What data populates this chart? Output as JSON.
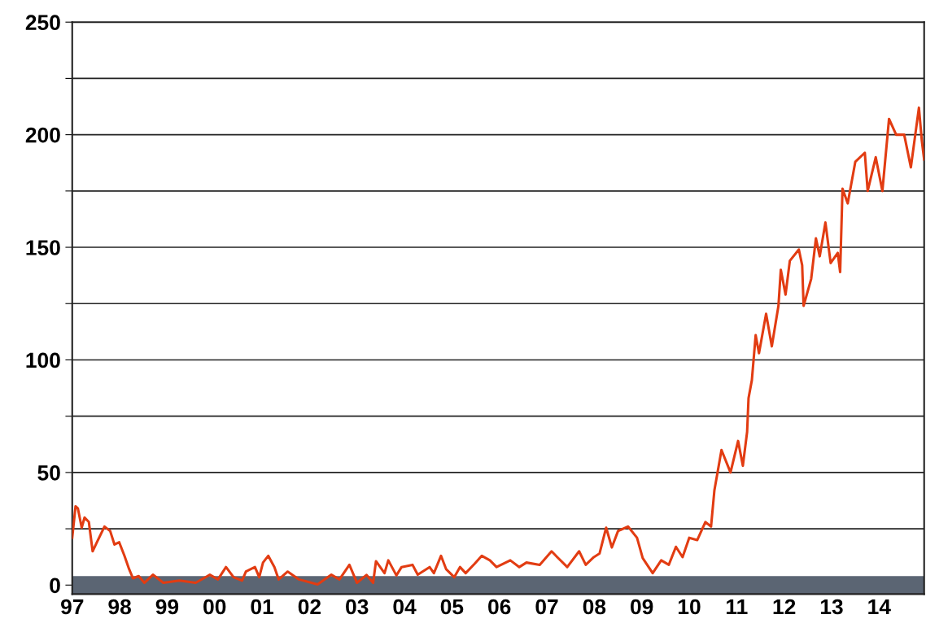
{
  "chart_data": {
    "type": "line",
    "x": [
      1997.0,
      1997.07,
      1997.12,
      1997.2,
      1997.26,
      1997.35,
      1997.43,
      1997.52,
      1997.68,
      1997.8,
      1997.89,
      1997.99,
      1998.1,
      1998.2,
      1998.28,
      1998.4,
      1998.52,
      1998.7,
      1998.92,
      1999.26,
      1999.6,
      1999.9,
      2000.07,
      2000.24,
      2000.4,
      2000.58,
      2000.66,
      2000.85,
      2000.94,
      2001.02,
      2001.13,
      2001.26,
      2001.35,
      2001.54,
      2001.78,
      2002.17,
      2002.46,
      2002.63,
      2002.84,
      2003.0,
      2003.2,
      2003.34,
      2003.4,
      2003.58,
      2003.66,
      2003.83,
      2003.94,
      2004.17,
      2004.28,
      2004.53,
      2004.62,
      2004.77,
      2004.88,
      2005.05,
      2005.17,
      2005.29,
      2005.48,
      2005.63,
      2005.8,
      2005.94,
      2006.23,
      2006.42,
      2006.57,
      2006.85,
      2007.1,
      2007.22,
      2007.43,
      2007.68,
      2007.82,
      2007.99,
      2008.11,
      2008.25,
      2008.37,
      2008.5,
      2008.71,
      2008.9,
      2009.02,
      2009.23,
      2009.41,
      2009.57,
      2009.72,
      2009.86,
      2010.0,
      2010.17,
      2010.34,
      2010.46,
      2010.53,
      2010.68,
      2010.87,
      2011.03,
      2011.13,
      2011.22,
      2011.25,
      2011.32,
      2011.4,
      2011.47,
      2011.62,
      2011.74,
      2011.88,
      2011.93,
      2012.03,
      2012.12,
      2012.31,
      2012.38,
      2012.41,
      2012.57,
      2012.67,
      2012.75,
      2012.87,
      2012.98,
      2013.13,
      2013.18,
      2013.23,
      2013.34,
      2013.5,
      2013.7,
      2013.76,
      2013.93,
      2014.07,
      2014.21,
      2014.36,
      2014.53,
      2014.67,
      2014.84,
      2014.9,
      2014.95
    ],
    "values": [
      21,
      35,
      34,
      25.5,
      30,
      28,
      15,
      19,
      26,
      24,
      18,
      19,
      13,
      7,
      3,
      4,
      1,
      4.6,
      1,
      2,
      1,
      4.6,
      2.5,
      8,
      3.5,
      2,
      6,
      8,
      3.5,
      10,
      13,
      8,
      2.5,
      6,
      2.5,
      0.3,
      4.6,
      2.5,
      9,
      1,
      4.5,
      1,
      10.6,
      5.3,
      11,
      4.3,
      8,
      9,
      4.6,
      8,
      5.3,
      13,
      7,
      3.5,
      8,
      5.3,
      9.5,
      13,
      11,
      8,
      11,
      8,
      10,
      9,
      15,
      12.4,
      8,
      15,
      9,
      12.4,
      14,
      25.5,
      16.7,
      24,
      26,
      21,
      12,
      5.3,
      11,
      9,
      17,
      12.4,
      21,
      20,
      28,
      26,
      42,
      60,
      50,
      64,
      53,
      68,
      83,
      91,
      111,
      103,
      120.5,
      106,
      124,
      140,
      129,
      144,
      149,
      142,
      124,
      136,
      154,
      146,
      161,
      143,
      147.5,
      139,
      176,
      169.5,
      188,
      192,
      175,
      190,
      175,
      207,
      200,
      200,
      185.5,
      212,
      197.5,
      189
    ],
    "color": "#e23c12",
    "xlim": [
      1997,
      2014.95
    ],
    "xticks": [
      {
        "value": 1997,
        "label": "97"
      },
      {
        "value": 1998,
        "label": "98"
      },
      {
        "value": 1999,
        "label": "99"
      },
      {
        "value": 2000,
        "label": "00"
      },
      {
        "value": 2001,
        "label": "01"
      },
      {
        "value": 2002,
        "label": "02"
      },
      {
        "value": 2003,
        "label": "03"
      },
      {
        "value": 2004,
        "label": "04"
      },
      {
        "value": 2005,
        "label": "05"
      },
      {
        "value": 2006,
        "label": "06"
      },
      {
        "value": 2007,
        "label": "07"
      },
      {
        "value": 2008,
        "label": "08"
      },
      {
        "value": 2009,
        "label": "09"
      },
      {
        "value": 2010,
        "label": "10"
      },
      {
        "value": 2011,
        "label": "11"
      },
      {
        "value": 2012,
        "label": "12"
      },
      {
        "value": 2013,
        "label": "13"
      },
      {
        "value": 2014,
        "label": "14"
      }
    ],
    "ylim": [
      -4,
      250
    ],
    "yticks": [
      0,
      {
        "value": 25,
        "label": null
      },
      50,
      {
        "value": 75,
        "label": null
      },
      100,
      {
        "value": 125,
        "label": null
      },
      150,
      {
        "value": 175,
        "label": null
      },
      200,
      {
        "value": 225,
        "label": null
      },
      250
    ],
    "bands": [
      {
        "axis": "y",
        "from": -4,
        "to": 4,
        "color": "#5b6573"
      }
    ],
    "grid": "y",
    "legend": false,
    "marker": "none",
    "line_style": "solid"
  }
}
